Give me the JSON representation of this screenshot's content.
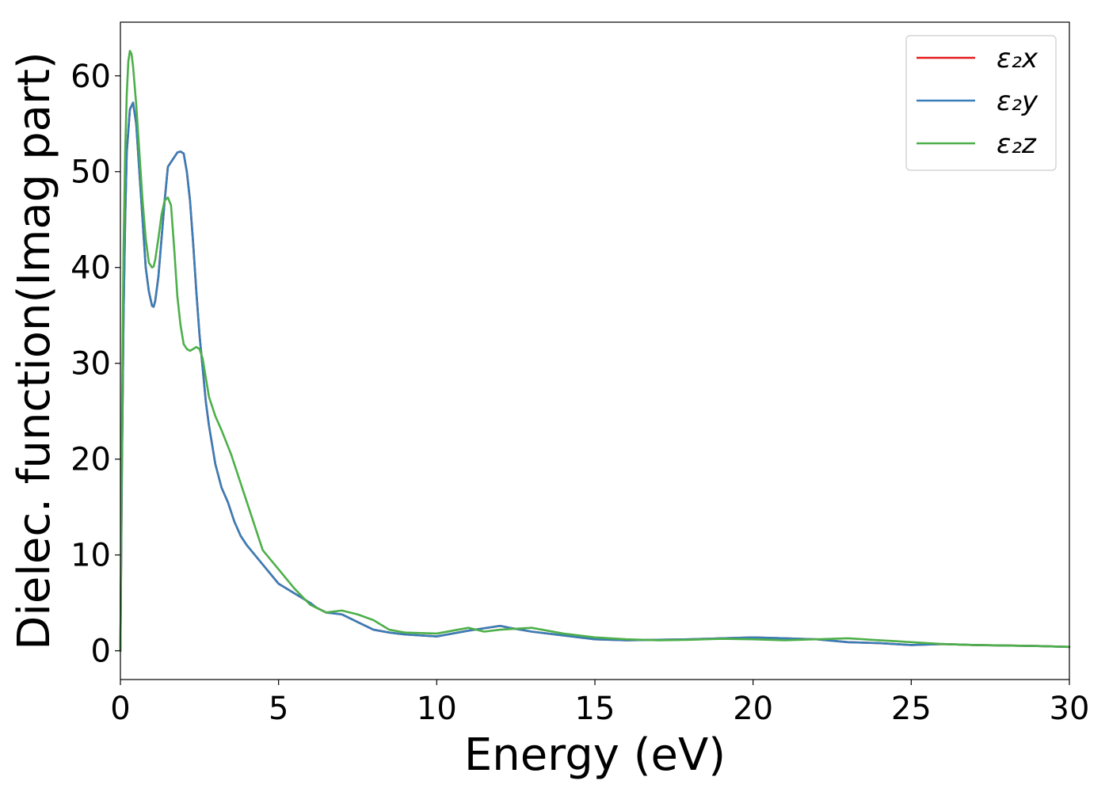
{
  "chart_data": {
    "type": "line",
    "title": "",
    "xlabel": "Energy (eV)",
    "ylabel": "Dielec. function(Imag part)",
    "xlim": [
      0,
      30
    ],
    "ylim": [
      -3,
      65.6
    ],
    "xticks": [
      0,
      5,
      10,
      15,
      20,
      25,
      30
    ],
    "yticks": [
      0,
      10,
      20,
      30,
      40,
      50,
      60
    ],
    "grid": false,
    "legend_position": "top-right",
    "series": [
      {
        "name": "ε₂x",
        "color": "#e41a1c",
        "x": [
          0.0,
          0.05,
          0.1,
          0.15,
          0.2,
          0.3,
          0.4,
          0.5,
          0.6,
          0.7,
          0.8,
          0.9,
          1.0,
          1.05,
          1.1,
          1.2,
          1.3,
          1.4,
          1.5,
          1.6,
          1.7,
          1.8,
          1.9,
          2.0,
          2.1,
          2.2,
          2.3,
          2.4,
          2.5,
          2.6,
          2.7,
          2.8,
          2.9,
          3.0,
          3.2,
          3.4,
          3.6,
          3.8,
          4.0,
          4.5,
          5.0,
          5.5,
          6.0,
          6.2,
          6.5,
          7.0,
          7.5,
          8.0,
          8.5,
          9.0,
          10.0,
          11.0,
          12.0,
          12.3,
          13.0,
          14.0,
          15.0,
          16.0,
          17.0,
          18.0,
          19.0,
          20.0,
          21.0,
          22.0,
          23.0,
          24.0,
          25.0,
          26.0,
          27.0,
          28.0,
          29.0,
          30.0
        ],
        "y": [
          0.0,
          20.0,
          35.0,
          45.0,
          52.0,
          56.5,
          57.2,
          55.0,
          50.0,
          45.0,
          40.0,
          37.5,
          36.0,
          35.9,
          36.5,
          39.0,
          43.0,
          47.0,
          50.5,
          51.0,
          51.5,
          52.0,
          52.1,
          51.9,
          50.0,
          47.0,
          42.5,
          37.5,
          33.0,
          29.5,
          26.0,
          23.5,
          21.5,
          19.5,
          17.0,
          15.5,
          13.5,
          12.0,
          11.0,
          9.0,
          7.0,
          6.0,
          5.0,
          4.5,
          4.0,
          3.8,
          3.0,
          2.2,
          1.9,
          1.7,
          1.5,
          2.1,
          2.6,
          2.4,
          2.0,
          1.6,
          1.2,
          1.1,
          1.15,
          1.2,
          1.3,
          1.4,
          1.3,
          1.2,
          0.9,
          0.8,
          0.6,
          0.7,
          0.6,
          0.55,
          0.5,
          0.4
        ]
      },
      {
        "name": "ε₂y",
        "color": "#377eb8",
        "x": [
          0.0,
          0.05,
          0.1,
          0.15,
          0.2,
          0.3,
          0.4,
          0.5,
          0.6,
          0.7,
          0.8,
          0.9,
          1.0,
          1.05,
          1.1,
          1.2,
          1.3,
          1.4,
          1.5,
          1.6,
          1.7,
          1.8,
          1.9,
          2.0,
          2.1,
          2.2,
          2.3,
          2.4,
          2.5,
          2.6,
          2.7,
          2.8,
          2.9,
          3.0,
          3.2,
          3.4,
          3.6,
          3.8,
          4.0,
          4.5,
          5.0,
          5.5,
          6.0,
          6.2,
          6.5,
          7.0,
          7.5,
          8.0,
          8.5,
          9.0,
          10.0,
          11.0,
          12.0,
          12.3,
          13.0,
          14.0,
          15.0,
          16.0,
          17.0,
          18.0,
          19.0,
          20.0,
          21.0,
          22.0,
          23.0,
          24.0,
          25.0,
          26.0,
          27.0,
          28.0,
          29.0,
          30.0
        ],
        "y": [
          0.0,
          20.0,
          35.0,
          45.0,
          52.0,
          56.5,
          57.2,
          55.0,
          50.0,
          45.0,
          40.0,
          37.5,
          36.0,
          35.9,
          36.5,
          39.0,
          43.0,
          47.0,
          50.5,
          51.0,
          51.5,
          52.0,
          52.1,
          51.9,
          50.0,
          47.0,
          42.5,
          37.5,
          33.0,
          29.5,
          26.0,
          23.5,
          21.5,
          19.5,
          17.0,
          15.5,
          13.5,
          12.0,
          11.0,
          9.0,
          7.0,
          6.0,
          5.0,
          4.5,
          4.0,
          3.8,
          3.0,
          2.2,
          1.9,
          1.7,
          1.5,
          2.1,
          2.6,
          2.4,
          2.0,
          1.6,
          1.2,
          1.1,
          1.15,
          1.2,
          1.3,
          1.4,
          1.3,
          1.2,
          0.9,
          0.8,
          0.6,
          0.7,
          0.6,
          0.55,
          0.5,
          0.4
        ]
      },
      {
        "name": "ε₂z",
        "color": "#4daf4a",
        "x": [
          0.0,
          0.05,
          0.1,
          0.15,
          0.2,
          0.25,
          0.3,
          0.35,
          0.4,
          0.5,
          0.6,
          0.7,
          0.8,
          0.9,
          1.0,
          1.05,
          1.1,
          1.2,
          1.3,
          1.4,
          1.5,
          1.6,
          1.7,
          1.8,
          1.9,
          2.0,
          2.1,
          2.2,
          2.3,
          2.4,
          2.5,
          2.6,
          2.7,
          2.8,
          2.9,
          3.0,
          3.2,
          3.5,
          3.8,
          4.0,
          4.5,
          5.0,
          5.5,
          6.0,
          6.5,
          7.0,
          7.5,
          8.0,
          8.5,
          9.0,
          10.0,
          11.0,
          11.5,
          12.0,
          13.0,
          14.0,
          15.0,
          16.0,
          17.0,
          18.0,
          19.0,
          20.0,
          21.0,
          22.0,
          23.0,
          24.0,
          24.5,
          25.0,
          26.0,
          27.0,
          28.0,
          29.0,
          30.0
        ],
        "y": [
          0.0,
          25.0,
          42.0,
          52.0,
          58.0,
          61.5,
          62.6,
          62.3,
          61.0,
          57.0,
          52.0,
          47.0,
          43.0,
          40.5,
          40.0,
          40.1,
          40.8,
          43.0,
          45.5,
          47.0,
          47.3,
          46.5,
          42.0,
          37.0,
          34.0,
          32.0,
          31.5,
          31.3,
          31.5,
          31.7,
          31.5,
          30.5,
          28.5,
          26.5,
          25.5,
          24.5,
          23.0,
          20.5,
          17.5,
          15.5,
          10.5,
          8.5,
          6.5,
          4.8,
          4.0,
          4.2,
          3.8,
          3.2,
          2.2,
          1.9,
          1.8,
          2.4,
          2.0,
          2.2,
          2.4,
          1.8,
          1.4,
          1.2,
          1.1,
          1.15,
          1.25,
          1.2,
          1.1,
          1.2,
          1.3,
          1.1,
          1.0,
          0.9,
          0.7,
          0.6,
          0.55,
          0.5,
          0.4
        ]
      }
    ]
  }
}
